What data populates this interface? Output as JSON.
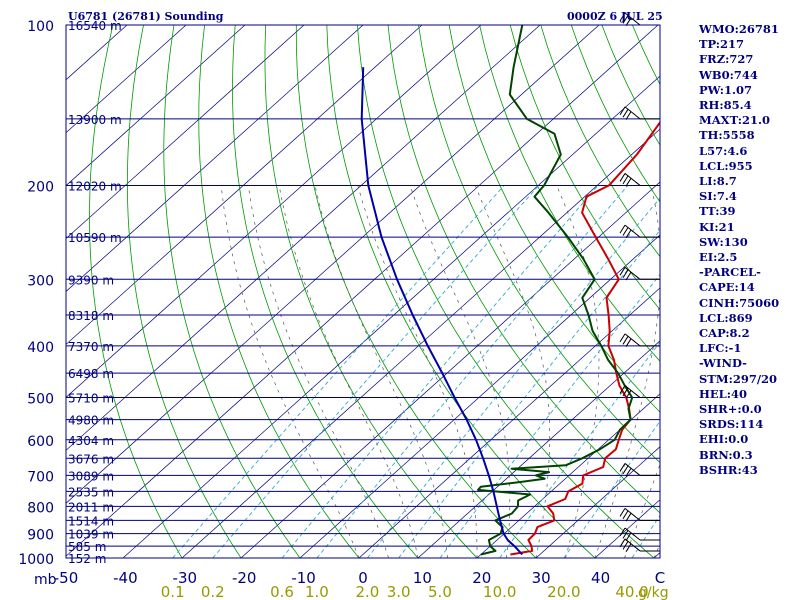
{
  "header": {
    "station": "U6781 (26781) Sounding",
    "time": "0000Z  6 JUL 25"
  },
  "axes": {
    "pressure_unit": "mb",
    "temp_labels": [
      "-50",
      "-40",
      "-30",
      "-20",
      "-10",
      "0",
      "10",
      "20",
      "30",
      "40",
      "C"
    ],
    "mixing_ratio_labels": [
      "0.1",
      "0.2",
      "0.6",
      "1.0",
      "2.0",
      "3.0",
      "5.0",
      "10.0",
      "20.0",
      "40.0"
    ],
    "mixing_ratio_unit": "g/kg"
  },
  "chart_data": {
    "type": "line",
    "title": "U6781 (26781) Sounding",
    "subtitle": "0000Z  6 JUL 25",
    "x_axis": "Temperature (C)",
    "y_axis": "Pressure (mb), log scale",
    "xlim": [
      -50,
      50
    ],
    "ylim": [
      1000,
      100
    ],
    "pressure_levels": [
      {
        "p": 100,
        "label": "100",
        "height": "16540 m"
      },
      {
        "p": 150,
        "label": "",
        "height": "13900 m"
      },
      {
        "p": 200,
        "label": "200",
        "height": "12020 m"
      },
      {
        "p": 250,
        "label": "",
        "height": "10590 m"
      },
      {
        "p": 300,
        "label": "300",
        "height": "9390 m"
      },
      {
        "p": 350,
        "label": "",
        "height": "8318 m"
      },
      {
        "p": 400,
        "label": "400",
        "height": "7370 m"
      },
      {
        "p": 450,
        "label": "",
        "height": "6498 m"
      },
      {
        "p": 500,
        "label": "500",
        "height": "5710 m"
      },
      {
        "p": 550,
        "label": "",
        "height": "4980 m"
      },
      {
        "p": 600,
        "label": "600",
        "height": "4304 m"
      },
      {
        "p": 650,
        "label": "",
        "height": "3676 m"
      },
      {
        "p": 700,
        "label": "700",
        "height": "3089 m"
      },
      {
        "p": 750,
        "label": "",
        "height": "2535 m"
      },
      {
        "p": 800,
        "label": "800",
        "height": "2011 m"
      },
      {
        "p": 850,
        "label": "",
        "height": "1514 m"
      },
      {
        "p": 900,
        "label": "900",
        "height": "1039 m"
      },
      {
        "p": 950,
        "label": "",
        "height": "585 m"
      },
      {
        "p": 1000,
        "label": "1000",
        "height": "152 m"
      }
    ],
    "series": [
      {
        "color": "#cc0000",
        "points": [
          [
            985,
            15.0
          ],
          [
            970,
            18.0
          ],
          [
            950,
            17.0
          ],
          [
            925,
            15.3
          ],
          [
            900,
            15.2
          ],
          [
            875,
            14.4
          ],
          [
            850,
            16.0
          ],
          [
            825,
            14.5
          ],
          [
            800,
            12.2
          ],
          [
            775,
            13.8
          ],
          [
            750,
            12.9
          ],
          [
            725,
            13.8
          ],
          [
            700,
            12.4
          ],
          [
            675,
            14.2
          ],
          [
            650,
            12.9
          ],
          [
            625,
            13.0
          ],
          [
            600,
            11.7
          ],
          [
            575,
            10.4
          ],
          [
            550,
            9.9
          ],
          [
            525,
            7.6
          ],
          [
            500,
            5.0
          ],
          [
            475,
            1.6
          ],
          [
            450,
            -1.3
          ],
          [
            425,
            -4.2
          ],
          [
            400,
            -7.8
          ],
          [
            375,
            -10.4
          ],
          [
            350,
            -13.6
          ],
          [
            325,
            -17.2
          ],
          [
            300,
            -18.6
          ],
          [
            275,
            -24.2
          ],
          [
            250,
            -30.5
          ],
          [
            225,
            -37.4
          ],
          [
            210,
            -39.7
          ],
          [
            200,
            -38.0
          ],
          [
            175,
            -39.1
          ],
          [
            150,
            -41.5
          ],
          [
            135,
            -44.6
          ],
          [
            115,
            -47.5
          ],
          [
            100,
            -50.0
          ]
        ]
      },
      {
        "color": "#004400",
        "points": [
          [
            985,
            10.0
          ],
          [
            970,
            11.8
          ],
          [
            950,
            10.0
          ],
          [
            925,
            8.6
          ],
          [
            900,
            9.4
          ],
          [
            875,
            8.5
          ],
          [
            850,
            6.0
          ],
          [
            825,
            7.5
          ],
          [
            800,
            7.2
          ],
          [
            780,
            6.1
          ],
          [
            760,
            7.0
          ],
          [
            745,
            -2.7
          ],
          [
            735,
            -2.8
          ],
          [
            720,
            3.0
          ],
          [
            710,
            6.5
          ],
          [
            700,
            4.4
          ],
          [
            690,
            6.0
          ],
          [
            680,
            -1.0
          ],
          [
            670,
            7.5
          ],
          [
            650,
            9.0
          ],
          [
            625,
            10.3
          ],
          [
            600,
            11.0
          ],
          [
            575,
            10.0
          ],
          [
            550,
            9.9
          ],
          [
            525,
            7.5
          ],
          [
            500,
            6.0
          ],
          [
            475,
            2.5
          ],
          [
            450,
            -1.0
          ],
          [
            425,
            -5.2
          ],
          [
            400,
            -9.0
          ],
          [
            375,
            -13.3
          ],
          [
            350,
            -17.0
          ],
          [
            325,
            -21.3
          ],
          [
            300,
            -22.7
          ],
          [
            275,
            -28.4
          ],
          [
            250,
            -35.2
          ],
          [
            225,
            -43.1
          ],
          [
            210,
            -48.5
          ],
          [
            200,
            -49.0
          ],
          [
            175,
            -52.0
          ],
          [
            160,
            -57.0
          ],
          [
            150,
            -64.5
          ],
          [
            135,
            -72.0
          ],
          [
            120,
            -76.5
          ],
          [
            100,
            -83.0
          ]
        ]
      },
      {
        "color": "#0000aa",
        "points": [
          [
            985,
            17.0
          ],
          [
            950,
            14.1
          ],
          [
            925,
            11.8
          ],
          [
            900,
            9.9
          ],
          [
            850,
            6.8
          ],
          [
            800,
            3.6
          ],
          [
            750,
            0.2
          ],
          [
            700,
            -3.6
          ],
          [
            650,
            -7.8
          ],
          [
            600,
            -12.5
          ],
          [
            550,
            -17.9
          ],
          [
            500,
            -24.1
          ],
          [
            450,
            -30.8
          ],
          [
            400,
            -38.4
          ],
          [
            350,
            -46.8
          ],
          [
            300,
            -56.2
          ],
          [
            250,
            -66.8
          ],
          [
            200,
            -78.8
          ],
          [
            150,
            -92.5
          ],
          [
            120,
            -102.0
          ]
        ]
      }
    ],
    "wind_barb_levels": [
      100,
      150,
      200,
      250,
      300,
      400,
      500,
      700,
      850,
      925,
      970
    ]
  },
  "indices": [
    "WMO:26781",
    "TP:217",
    "FRZ:727",
    "WB0:744",
    "PW:1.07",
    "RH:85.4",
    "MAXT:21.0",
    "TH:5558",
    "L57:4.6",
    "LCL:955",
    "LI:8.7",
    "SI:7.4",
    "TT:39",
    "KI:21",
    "SW:130",
    "EI:2.5",
    "-PARCEL-",
    "CAPE:14",
    "CINH:75060",
    "LCL:869",
    "CAP:8.2",
    "LFC:-1",
    "-WIND-",
    "STM:297/20",
    "HEL:40",
    "SHR+:0.0",
    "SRDS:114",
    "EHI:0.0",
    "BRN:0.3",
    "BSHR:43"
  ],
  "colors": {
    "isobar": "#000080",
    "isotherm": "#000080",
    "dry_adiabat": "#009900",
    "moist_adiabat": "#555555",
    "mixing_ratio": "#33aacc",
    "temperature": "#cc0000",
    "dewpoint": "#004400",
    "parcel": "#0000aa",
    "label": "#000080",
    "mixing_ratio_label": "#999900"
  }
}
